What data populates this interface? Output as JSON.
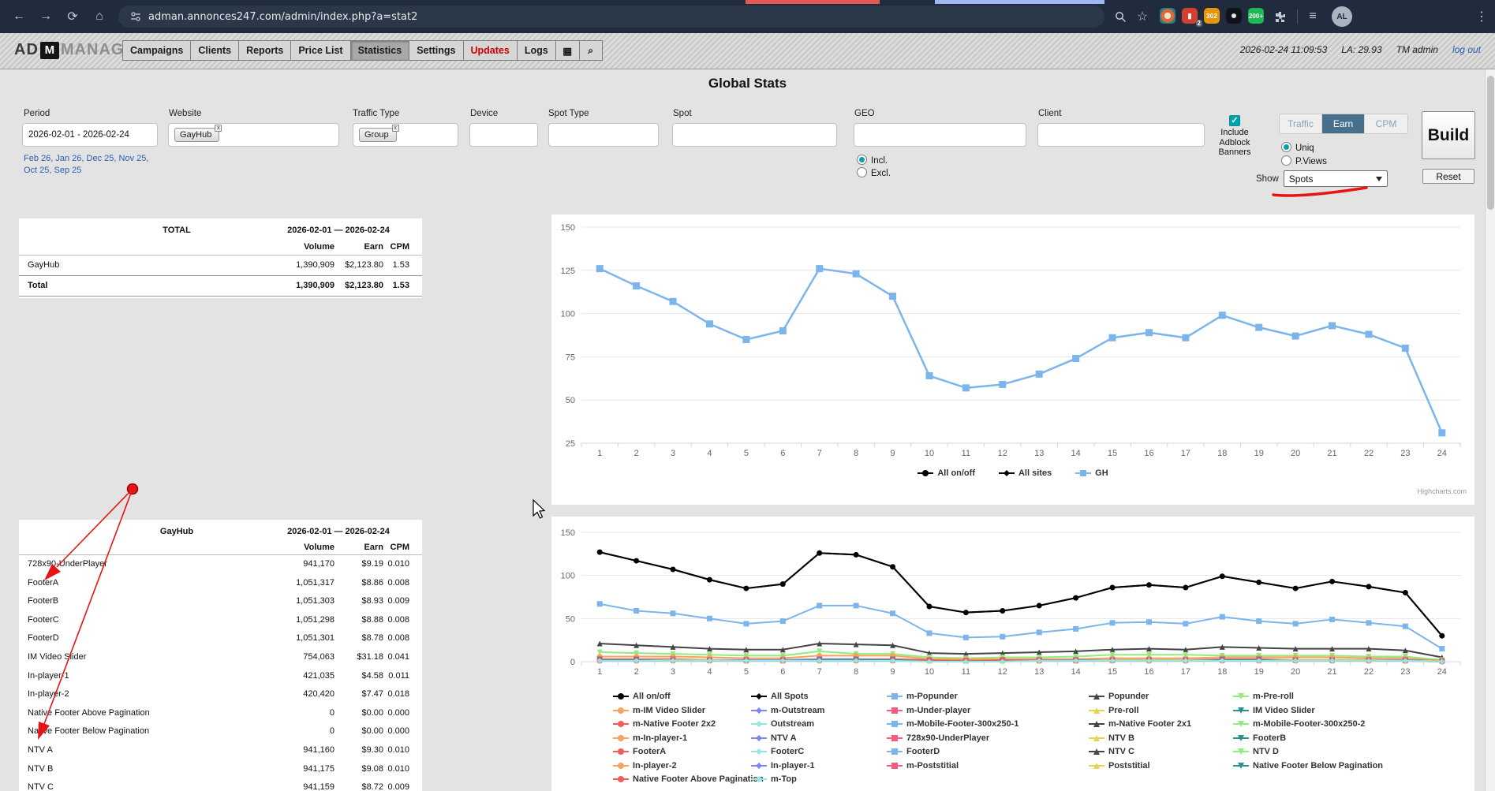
{
  "browser": {
    "url": "adman.annonces247.com/admin/index.php?a=stat2",
    "ext_badge_red": "2",
    "ext_badge_orange": "302",
    "ext_badge_green": "200+",
    "avatar": "AL"
  },
  "header": {
    "logo_prefix": "AD",
    "logo_m": "M",
    "logo_suffix": "MANAGER",
    "menu": [
      {
        "label": "Campaigns"
      },
      {
        "label": "Clients"
      },
      {
        "label": "Reports"
      },
      {
        "label": "Price List"
      },
      {
        "label": "Statistics",
        "active": true
      },
      {
        "label": "Settings"
      },
      {
        "label": "Updates",
        "alert": true
      },
      {
        "label": "Logs"
      }
    ],
    "datetime": "2026-02-24 11:09:53",
    "la": "LA: 29.93",
    "user": "TM admin",
    "logout": "log out"
  },
  "title": "Global Stats",
  "filters": {
    "period": {
      "label": "Period",
      "value": "2026-02-01 - 2026-02-24"
    },
    "quick_links": [
      "Feb 26",
      "Jan 26",
      "Dec 25",
      "Nov 25",
      "Oct 25",
      "Sep 25"
    ],
    "website": {
      "label": "Website",
      "tag": "GayHub"
    },
    "traffic_type": {
      "label": "Traffic Type",
      "tag": "Group"
    },
    "device": {
      "label": "Device"
    },
    "spot_type": {
      "label": "Spot Type"
    },
    "spot": {
      "label": "Spot"
    },
    "geo": {
      "label": "GEO",
      "incl": "Incl.",
      "excl": "Excl."
    },
    "client": {
      "label": "Client"
    },
    "adblock": {
      "lines": [
        "Include",
        "Adblock",
        "Banners"
      ],
      "checked": true
    },
    "metric_tabs": {
      "options": [
        "Traffic",
        "Earn",
        "CPM"
      ],
      "active": "Earn"
    },
    "uniq": "Uniq",
    "pviews": "P.Views",
    "show": {
      "label": "Show",
      "value": "Spots"
    },
    "build": "Build",
    "reset": "Reset"
  },
  "summary_table": {
    "title": "TOTAL",
    "period": "2026-02-01 — 2026-02-24",
    "columns": [
      "Volume",
      "Earn",
      "CPM"
    ],
    "rows": [
      {
        "name": "GayHub",
        "volume": "1,390,909",
        "earn": "$2,123.80",
        "cpm": "1.53"
      }
    ],
    "total": {
      "name": "Total",
      "volume": "1,390,909",
      "earn": "$2,123.80",
      "cpm": "1.53"
    }
  },
  "spots_table": {
    "title": "GayHub",
    "period": "2026-02-01 — 2026-02-24",
    "columns": [
      "Volume",
      "Earn",
      "CPM"
    ],
    "rows": [
      {
        "name": "728x90-UnderPlayer",
        "volume": "941,170",
        "earn": "$9.19",
        "cpm": "0.010"
      },
      {
        "name": "FooterA",
        "volume": "1,051,317",
        "earn": "$8.86",
        "cpm": "0.008"
      },
      {
        "name": "FooterB",
        "volume": "1,051,303",
        "earn": "$8.93",
        "cpm": "0.009"
      },
      {
        "name": "FooterC",
        "volume": "1,051,298",
        "earn": "$8.88",
        "cpm": "0.008"
      },
      {
        "name": "FooterD",
        "volume": "1,051,301",
        "earn": "$8.78",
        "cpm": "0.008"
      },
      {
        "name": "IM Video Slider",
        "volume": "754,063",
        "earn": "$31.18",
        "cpm": "0.041"
      },
      {
        "name": "In-player-1",
        "volume": "421,035",
        "earn": "$4.58",
        "cpm": "0.011"
      },
      {
        "name": "In-player-2",
        "volume": "420,420",
        "earn": "$7.47",
        "cpm": "0.018"
      },
      {
        "name": "Native Footer Above Pagination",
        "volume": "0",
        "earn": "$0.00",
        "cpm": "0.000"
      },
      {
        "name": "Native Footer Below Pagination",
        "volume": "0",
        "earn": "$0.00",
        "cpm": "0.000"
      },
      {
        "name": "NTV A",
        "volume": "941,160",
        "earn": "$9.30",
        "cpm": "0.010"
      },
      {
        "name": "NTV B",
        "volume": "941,175",
        "earn": "$9.08",
        "cpm": "0.010"
      },
      {
        "name": "NTV C",
        "volume": "941,159",
        "earn": "$8.72",
        "cpm": "0.009"
      }
    ]
  },
  "chart_data": [
    {
      "type": "line",
      "x": [
        1,
        2,
        3,
        4,
        5,
        6,
        7,
        8,
        9,
        10,
        11,
        12,
        13,
        14,
        15,
        16,
        17,
        18,
        19,
        20,
        21,
        22,
        23,
        24
      ],
      "ylim": [
        25,
        150
      ],
      "yticks": [
        25,
        50,
        75,
        100,
        125,
        150
      ],
      "grid": true,
      "legend_position": "bottom",
      "series": [
        {
          "name": "GH",
          "color": "#7cb5ec",
          "marker": "square",
          "values": [
            126,
            116,
            107,
            94,
            85,
            90,
            126,
            123,
            110,
            64,
            57,
            59,
            65,
            74,
            86,
            89,
            86,
            99,
            92,
            87,
            93,
            88,
            80,
            31
          ]
        }
      ],
      "legend": [
        {
          "label": "All on/off",
          "marker": "circle",
          "color": "#000000"
        },
        {
          "label": "All sites",
          "marker": "diamond",
          "color": "#000000"
        },
        {
          "label": "GH",
          "marker": "square",
          "color": "#7cb5ec"
        }
      ],
      "credits": "Highcharts.com"
    },
    {
      "type": "line",
      "x": [
        1,
        2,
        3,
        4,
        5,
        6,
        7,
        8,
        9,
        10,
        11,
        12,
        13,
        14,
        15,
        16,
        17,
        18,
        19,
        20,
        21,
        22,
        23,
        24
      ],
      "ylim": [
        0,
        150
      ],
      "yticks": [
        0,
        50,
        100,
        150
      ],
      "grid": true,
      "legend_position": "bottom",
      "series": [
        {
          "name": "All on/off",
          "color": "#000000",
          "marker": "circle",
          "values": [
            127,
            117,
            107,
            95,
            85,
            90,
            126,
            124,
            110,
            64,
            57,
            59,
            65,
            74,
            86,
            89,
            86,
            99,
            92,
            85,
            93,
            87,
            80,
            30
          ]
        },
        {
          "name": "All Spots",
          "color": "#000000",
          "marker": "diamond",
          "values": [
            127,
            117,
            107,
            95,
            85,
            90,
            126,
            124,
            110,
            64,
            57,
            59,
            65,
            74,
            86,
            89,
            86,
            99,
            92,
            85,
            93,
            87,
            80,
            30
          ]
        },
        {
          "name": "m-Popunder",
          "color": "#7cb5ec",
          "marker": "square",
          "values": [
            67,
            59,
            56,
            50,
            44,
            47,
            65,
            65,
            56,
            33,
            28,
            29,
            34,
            38,
            45,
            46,
            44,
            52,
            47,
            44,
            49,
            45,
            41,
            15
          ]
        },
        {
          "name": "Popunder",
          "color": "#434348",
          "marker": "triangle",
          "values": [
            21,
            19,
            17,
            15,
            14,
            14,
            21,
            20,
            19,
            10,
            9,
            10,
            11,
            12,
            14,
            15,
            14,
            17,
            16,
            15,
            15,
            15,
            13,
            5
          ]
        },
        {
          "name": "m-Pre-roll",
          "color": "#90ed7d",
          "marker": "triangle-down",
          "values": [
            11,
            10,
            9,
            8,
            7,
            7,
            12,
            9,
            9,
            5,
            4,
            5,
            5,
            6,
            8,
            8,
            8,
            7,
            7,
            7,
            7,
            6,
            6,
            2
          ]
        },
        {
          "name": "m-IM Video Slider",
          "color": "#f7a35c",
          "marker": "circle",
          "values": [
            6,
            6,
            6,
            5,
            4,
            4,
            7,
            7,
            7,
            3,
            3,
            3,
            3,
            3,
            4,
            4,
            4,
            5,
            5,
            5,
            5,
            4,
            4,
            1
          ]
        },
        {
          "name": "m-Under-player",
          "color": "#f15c80",
          "marker": "square",
          "values": [
            3,
            3,
            3,
            2,
            2,
            2,
            3,
            3,
            3,
            2,
            1,
            2,
            2,
            2,
            2,
            2,
            2,
            3,
            3,
            2,
            2,
            2,
            2,
            1
          ]
        },
        {
          "name": "NTV A",
          "color": "#8085e9",
          "marker": "diamond",
          "values": [
            2,
            2,
            2,
            2,
            2,
            2,
            3,
            3,
            2,
            1,
            1,
            1,
            1,
            2,
            2,
            2,
            2,
            2,
            2,
            2,
            2,
            2,
            2,
            1
          ]
        },
        {
          "name": "Pre-roll",
          "color": "#e4d354",
          "marker": "triangle",
          "values": [
            2,
            2,
            2,
            2,
            1,
            1,
            2,
            2,
            2,
            1,
            1,
            1,
            1,
            1,
            2,
            2,
            2,
            2,
            2,
            2,
            2,
            2,
            1,
            1
          ]
        },
        {
          "name": "IM Video Slider",
          "color": "#2b908f",
          "marker": "triangle-down",
          "values": [
            2,
            2,
            1,
            1,
            1,
            1,
            2,
            2,
            2,
            1,
            1,
            1,
            1,
            1,
            1,
            1,
            1,
            2,
            2,
            1,
            1,
            1,
            1,
            0
          ]
        },
        {
          "name": "FooterA",
          "color": "#f45b5b",
          "marker": "circle",
          "values": [
            1,
            1,
            1,
            1,
            1,
            1,
            1,
            1,
            1,
            1,
            1,
            1,
            1,
            1,
            1,
            1,
            1,
            1,
            1,
            1,
            1,
            1,
            1,
            0
          ]
        },
        {
          "name": "Outstream",
          "color": "#91e8e1",
          "marker": "diamond",
          "values": [
            1,
            1,
            1,
            1,
            1,
            1,
            1,
            1,
            1,
            0,
            0,
            0,
            1,
            1,
            1,
            1,
            1,
            1,
            1,
            1,
            1,
            1,
            1,
            0
          ]
        }
      ],
      "legend": [
        {
          "label": "All on/off",
          "marker": "circle",
          "color": "#000000"
        },
        {
          "label": "All Spots",
          "marker": "diamond",
          "color": "#000000"
        },
        {
          "label": "m-Popunder",
          "marker": "square",
          "color": "#7cb5ec"
        },
        {
          "label": "Popunder",
          "marker": "triangle",
          "color": "#434348"
        },
        {
          "label": "m-Pre-roll",
          "marker": "triangle-down",
          "color": "#90ed7d"
        },
        {
          "label": "m-IM Video Slider",
          "marker": "circle",
          "color": "#f7a35c"
        },
        {
          "label": "m-Outstream",
          "marker": "diamond",
          "color": "#8085e9"
        },
        {
          "label": "m-Under-player",
          "marker": "square",
          "color": "#f15c80"
        },
        {
          "label": "Pre-roll",
          "marker": "triangle",
          "color": "#e4d354"
        },
        {
          "label": "IM Video Slider",
          "marker": "triangle-down",
          "color": "#2b908f"
        },
        {
          "label": "m-Native Footer 2x2",
          "marker": "circle",
          "color": "#f45b5b"
        },
        {
          "label": "Outstream",
          "marker": "diamond",
          "color": "#91e8e1"
        },
        {
          "label": "m-Mobile-Footer-300x250-1",
          "marker": "square",
          "color": "#7cb5ec"
        },
        {
          "label": "m-Native Footer 2x1",
          "marker": "triangle",
          "color": "#434348"
        },
        {
          "label": "m-Mobile-Footer-300x250-2",
          "marker": "triangle-down",
          "color": "#90ed7d"
        },
        {
          "label": "m-In-player-1",
          "marker": "circle",
          "color": "#f7a35c"
        },
        {
          "label": "NTV A",
          "marker": "diamond",
          "color": "#8085e9"
        },
        {
          "label": "728x90-UnderPlayer",
          "marker": "square",
          "color": "#f15c80"
        },
        {
          "label": "NTV B",
          "marker": "triangle",
          "color": "#e4d354"
        },
        {
          "label": "FooterB",
          "marker": "triangle-down",
          "color": "#2b908f"
        },
        {
          "label": "FooterA",
          "marker": "circle",
          "color": "#f45b5b"
        },
        {
          "label": "FooterC",
          "marker": "diamond",
          "color": "#91e8e1"
        },
        {
          "label": "FooterD",
          "marker": "square",
          "color": "#7cb5ec"
        },
        {
          "label": "NTV C",
          "marker": "triangle",
          "color": "#434348"
        },
        {
          "label": "NTV D",
          "marker": "triangle-down",
          "color": "#90ed7d"
        },
        {
          "label": "In-player-2",
          "marker": "circle",
          "color": "#f7a35c"
        },
        {
          "label": "In-player-1",
          "marker": "diamond",
          "color": "#8085e9"
        },
        {
          "label": "m-Poststitial",
          "marker": "square",
          "color": "#f15c80"
        },
        {
          "label": "Poststitial",
          "marker": "triangle",
          "color": "#e4d354"
        },
        {
          "label": "Native Footer Below Pagination",
          "marker": "triangle-down",
          "color": "#2b908f"
        },
        {
          "label": "Native Footer Above Pagination",
          "marker": "circle",
          "color": "#f45b5b"
        },
        {
          "label": "m-Top",
          "marker": "diamond",
          "color": "#91e8e1"
        }
      ]
    }
  ],
  "colors": {
    "accent_teal": "#00a3ad",
    "earn_active": "#46708c",
    "alert_red": "#cc0000",
    "link_blue": "#2a5db0",
    "annotation_red": "#e81313"
  }
}
